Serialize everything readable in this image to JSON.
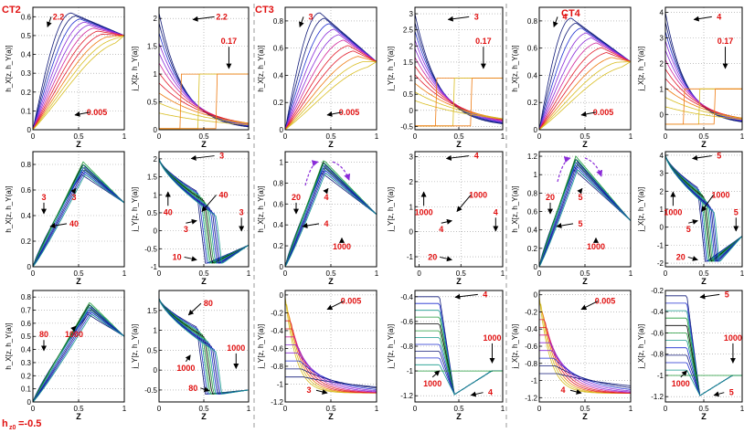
{
  "figure": {
    "groups": [
      "CT2",
      "CT3",
      "CT4"
    ],
    "bottom_note": "h",
    "bottom_note_sub": "z0",
    "bottom_note_value": "=-0.5"
  },
  "colors": {
    "blue": "#1f2fd0",
    "navy": "#101a78",
    "purple": "#8a2bd8",
    "magenta": "#d0249a",
    "red": "#e21c2c",
    "orange": "#ee7a10",
    "yellow": "#d8bd20",
    "green": "#1f9a38",
    "teal": "#169a8c",
    "black": "#000000",
    "label_red": "#e01010",
    "axis": "#000000",
    "grid": "#9a9a9a"
  },
  "chart_data": [
    {
      "id": "ct2-h-row1",
      "type": "line",
      "xlabel": "Z",
      "ylabel": "h_X[z, h_Y(a)]",
      "xlim": [
        0,
        1
      ],
      "ylim": [
        0,
        0.65
      ],
      "xticks": [
        0,
        0.5,
        1
      ],
      "yticks": [
        0,
        0.1,
        0.2,
        0.3,
        0.4,
        0.5,
        0.6
      ],
      "yticklabels": [
        "0",
        "0.1",
        "0.2",
        "0.3",
        "0.4",
        "0.5",
        "0.6"
      ],
      "kind": "fan",
      "peak_x": 0.42,
      "peak_y": 0.62,
      "end_y": 0.5,
      "annotations": [
        "2.2",
        "0.005"
      ]
    },
    {
      "id": "ct2-j-row1",
      "type": "line",
      "xlabel": "Z",
      "ylabel": "j_X[z, h_Y(a)]",
      "xlim": [
        0,
        1
      ],
      "ylim": [
        0,
        2.2
      ],
      "xticks": [
        0,
        0.5,
        1
      ],
      "yticks": [
        0,
        0.5,
        1,
        1.5,
        2
      ],
      "yticklabels": [
        "0",
        "0.5",
        "1",
        "1.5",
        "2"
      ],
      "kind": "jfan",
      "j_start": 2.1,
      "j_end": 0.0,
      "step_y": 1.0,
      "annotations": [
        "2.2",
        "0.17"
      ]
    },
    {
      "id": "ct3-h-row1",
      "type": "line",
      "xlabel": "Z",
      "ylabel": "h_X[z, h_Y(a)]",
      "xlim": [
        0,
        1
      ],
      "ylim": [
        0,
        0.9
      ],
      "xticks": [
        0,
        0.5,
        1
      ],
      "yticks": [
        0,
        0.2,
        0.4,
        0.6,
        0.8
      ],
      "yticklabels": [
        "0",
        "0.2",
        "0.4",
        "0.6",
        "0.8"
      ],
      "kind": "fan",
      "peak_x": 0.38,
      "peak_y": 0.86,
      "end_y": 0.5,
      "annotations": [
        "3",
        "0.005"
      ]
    },
    {
      "id": "ct3-j-row1",
      "type": "line",
      "xlabel": "Z",
      "ylabel": "j_Y[z, h_Y(a)]",
      "xlim": [
        0,
        1
      ],
      "ylim": [
        -0.6,
        3.2
      ],
      "xticks": [
        0,
        0.5,
        1
      ],
      "yticks": [
        -0.5,
        0,
        0.5,
        1,
        1.5,
        2,
        2.5,
        3
      ],
      "yticklabels": [
        "-0.5",
        "0",
        "0.5",
        "1",
        "1.5",
        "2",
        "2.5",
        "3"
      ],
      "kind": "jfan",
      "j_start": 3.0,
      "j_end": -0.5,
      "step_y": 1.0,
      "annotations": [
        "3",
        "0.17"
      ]
    },
    {
      "id": "ct4-h-row1",
      "type": "line",
      "xlabel": "Z",
      "ylabel": "h_X[z, h_Y(a)]",
      "xlim": [
        0,
        1
      ],
      "ylim": [
        0,
        0.9
      ],
      "xticks": [
        0,
        0.5,
        1
      ],
      "yticks": [
        0,
        0.2,
        0.4,
        0.6,
        0.8
      ],
      "yticklabels": [
        "0",
        "0.2",
        "0.4",
        "0.6",
        "0.8"
      ],
      "kind": "fan",
      "peak_x": 0.35,
      "peak_y": 0.82,
      "end_y": 0.5,
      "annotations": [
        "4",
        "0.005"
      ]
    },
    {
      "id": "ct4-j-row1",
      "type": "line",
      "xlabel": "Z",
      "ylabel": "j_X[z, h_Y(a)]",
      "xlim": [
        0,
        1
      ],
      "ylim": [
        -0.6,
        4.2
      ],
      "xticks": [
        0,
        0.5,
        1
      ],
      "yticks": [
        0,
        1,
        2,
        3,
        4
      ],
      "yticklabels": [
        "0",
        "1",
        "2",
        "3",
        "4"
      ],
      "kind": "jfan",
      "j_start": 4.0,
      "j_end": -0.4,
      "step_y": 1.0,
      "annotations": [
        "4",
        "0.17"
      ]
    },
    {
      "id": "ct2-h-row2",
      "type": "line",
      "xlabel": "Z",
      "ylabel": "h_X[z, h_Y(a)]",
      "xlim": [
        0,
        1
      ],
      "ylim": [
        0,
        0.9
      ],
      "xticks": [
        0,
        0.5,
        1
      ],
      "yticks": [
        0,
        0.2,
        0.4,
        0.6,
        0.8
      ],
      "yticklabels": [
        "0",
        "0.2",
        "0.4",
        "0.6",
        "0.8"
      ],
      "kind": "tent",
      "peak_x": 0.55,
      "peak_y": 0.82,
      "end_y": 0.5,
      "annotations": [
        "3",
        "3",
        "40"
      ]
    },
    {
      "id": "ct2-j-row2",
      "type": "line",
      "xlabel": "Z",
      "ylabel": "j_Y[z, h_Y(a)]",
      "xlim": [
        0,
        1
      ],
      "ylim": [
        -1,
        2.2
      ],
      "xticks": [
        0,
        0.5,
        1
      ],
      "yticks": [
        -1,
        -0.5,
        0,
        0.5,
        1,
        1.5,
        2
      ],
      "yticklabels": [
        "-1",
        "-0.5",
        "0",
        "0.5",
        "1",
        "1.5",
        "2"
      ],
      "kind": "sdrop",
      "j_start": 2.0,
      "j_min": -0.9,
      "j_end": -0.4,
      "annotations": [
        "3",
        "40",
        "40",
        "3",
        "3",
        "10"
      ]
    },
    {
      "id": "ct3-h-row2",
      "type": "line",
      "xlabel": "Z",
      "ylabel": "h_X[z, h_Y(a)]",
      "xlim": [
        0,
        1
      ],
      "ylim": [
        0,
        1.1
      ],
      "xticks": [
        0,
        0.5,
        1
      ],
      "yticks": [
        0,
        0.2,
        0.4,
        0.6,
        0.8,
        1
      ],
      "yticklabels": [
        "0",
        "0.2",
        "0.4",
        "0.6",
        "0.8",
        "1"
      ],
      "kind": "tent",
      "peak_x": 0.42,
      "peak_y": 1.02,
      "end_y": 0.5,
      "annotations": [
        "20",
        "4",
        "4",
        "1000"
      ]
    },
    {
      "id": "ct3-j-row2",
      "type": "line",
      "xlabel": "Z",
      "ylabel": "j_Y[z, h_Y(a)]",
      "xlim": [
        -0.05,
        1
      ],
      "ylim": [
        -1.4,
        3.2
      ],
      "xticks": [
        0,
        0.5,
        1
      ],
      "yticks": [
        -1,
        0,
        1,
        2,
        3
      ],
      "yticklabels": [
        "-1",
        "0",
        "1",
        "2",
        "3"
      ],
      "kind": "sdrop",
      "j_start": 3.0,
      "j_min": -1.2,
      "j_end": -0.5,
      "annotations": [
        "4",
        "1000",
        "1000",
        "4",
        "4",
        "20"
      ]
    },
    {
      "id": "ct4-h-row2",
      "type": "line",
      "xlabel": "Z",
      "ylabel": "h_X[z, h_Y(a)]",
      "xlim": [
        0,
        1
      ],
      "ylim": [
        0,
        1.25
      ],
      "xticks": [
        0,
        0.5,
        1
      ],
      "yticks": [
        0,
        0.2,
        0.4,
        0.6,
        0.8,
        1,
        1.2
      ],
      "yticklabels": [
        "0",
        "0.2",
        "0.4",
        "0.6",
        "0.8",
        "1",
        "1.2"
      ],
      "kind": "tent",
      "peak_x": 0.4,
      "peak_y": 1.2,
      "end_y": 0.5,
      "annotations": [
        "20",
        "5",
        "5",
        "1000"
      ]
    },
    {
      "id": "ct4-j-row2",
      "type": "line",
      "xlabel": "Z",
      "ylabel": "j_X[z, h_Y(a)]",
      "xlim": [
        0,
        1
      ],
      "ylim": [
        -2.2,
        4.2
      ],
      "xticks": [
        0,
        0.5,
        1
      ],
      "yticks": [
        -2,
        -1,
        0,
        1,
        2,
        3,
        4
      ],
      "yticklabels": [
        "-2",
        "-1",
        "0",
        "1",
        "2",
        "3",
        "4"
      ],
      "kind": "sdrop",
      "j_start": 4.0,
      "j_min": -1.9,
      "j_end": -0.5,
      "annotations": [
        "5",
        "1000",
        "1000",
        "5",
        "5",
        "20"
      ]
    },
    {
      "id": "ct2-h-row3",
      "type": "line",
      "xlabel": "Z",
      "ylabel": "h_X[z, h_Y(a)]",
      "xlim": [
        0,
        1
      ],
      "ylim": [
        0,
        0.85
      ],
      "xticks": [
        0,
        0.5,
        1
      ],
      "yticks": [
        0,
        0.1,
        0.2,
        0.3,
        0.4,
        0.5,
        0.6,
        0.7,
        0.8
      ],
      "yticklabels": [
        "0",
        "0.1",
        "0.2",
        "0.3",
        "0.4",
        "0.5",
        "0.6",
        "0.7",
        "0.8"
      ],
      "kind": "tent",
      "peak_x": 0.62,
      "peak_y": 0.76,
      "end_y": 0.5,
      "annotations": [
        "80",
        "1000"
      ]
    },
    {
      "id": "ct2-j-row3",
      "type": "line",
      "xlabel": "Z",
      "ylabel": "j_Y[z, h_Y(a)]",
      "xlim": [
        0,
        1
      ],
      "ylim": [
        -0.8,
        2.0
      ],
      "xticks": [
        0,
        0.5,
        1
      ],
      "yticks": [
        -0.5,
        0,
        0.5,
        1,
        1.5
      ],
      "yticklabels": [
        "-0.5",
        "0",
        "0.5",
        "1",
        "1.5"
      ],
      "kind": "stair",
      "j_start": 1.8,
      "j_min": -0.6,
      "j_end": -0.5,
      "annotations": [
        "80",
        "1000",
        "1000",
        "80"
      ]
    },
    {
      "id": "ct3-h-row3",
      "type": "line",
      "xlabel": "Z",
      "ylabel": "j_Y[z, h_Y(a)]",
      "xlim": [
        0,
        1
      ],
      "ylim": [
        -1.2,
        0.05
      ],
      "xticks": [
        0,
        0.5,
        1
      ],
      "yticks": [
        -1.2,
        -1,
        -0.8,
        -0.6,
        -0.4,
        -0.2,
        0
      ],
      "yticklabels": [
        "-1.2",
        "-1",
        "-0.8",
        "-0.6",
        "-0.4",
        "-0.2",
        "0"
      ],
      "kind": "decay",
      "annotations": [
        "0.005",
        "3"
      ]
    },
    {
      "id": "ct3-j-row3",
      "type": "line",
      "xlabel": "Z",
      "ylabel": "j_Y[z, h_Y(a)]",
      "xlim": [
        0,
        1
      ],
      "ylim": [
        -1.25,
        -0.35
      ],
      "xticks": [
        0,
        0.5,
        1
      ],
      "yticks": [
        -1.2,
        -1,
        -0.8,
        -0.6,
        -0.4
      ],
      "yticklabels": [
        "-1.2",
        "-1",
        "-0.8",
        "-0.6",
        "-0.4"
      ],
      "kind": "wdrop",
      "annotations": [
        "4",
        "1000",
        "1000",
        "4"
      ]
    },
    {
      "id": "ct4-h-row3",
      "type": "line",
      "xlabel": "Z",
      "ylabel": "j_X[z, h_Y(a)]",
      "xlim": [
        0,
        1
      ],
      "ylim": [
        -1.25,
        0.05
      ],
      "xticks": [
        0,
        0.5,
        1
      ],
      "yticks": [
        -1.2,
        -1,
        -0.8,
        -0.6,
        -0.4,
        -0.2,
        0
      ],
      "yticklabels": [
        "-1.2",
        "-1",
        "-0.8",
        "-0.6",
        "-0.4",
        "-0.2",
        "0"
      ],
      "kind": "decay",
      "annotations": [
        "0.005",
        "4"
      ]
    },
    {
      "id": "ct4-j-row3",
      "type": "line",
      "xlabel": "Z",
      "ylabel": "j_X[z, h_Y(a)]",
      "xlim": [
        0,
        1
      ],
      "ylim": [
        -1.25,
        -0.2
      ],
      "xticks": [
        0,
        0.5,
        1
      ],
      "yticks": [
        -1.2,
        -1,
        -0.8,
        -0.6,
        -0.4,
        -0.2
      ],
      "yticklabels": [
        "-1.2",
        "-1",
        "-0.8",
        "-0.6",
        "-0.4",
        "-0.2"
      ],
      "kind": "wdrop",
      "annotations": [
        "5",
        "1000",
        "1000",
        "5"
      ]
    }
  ]
}
